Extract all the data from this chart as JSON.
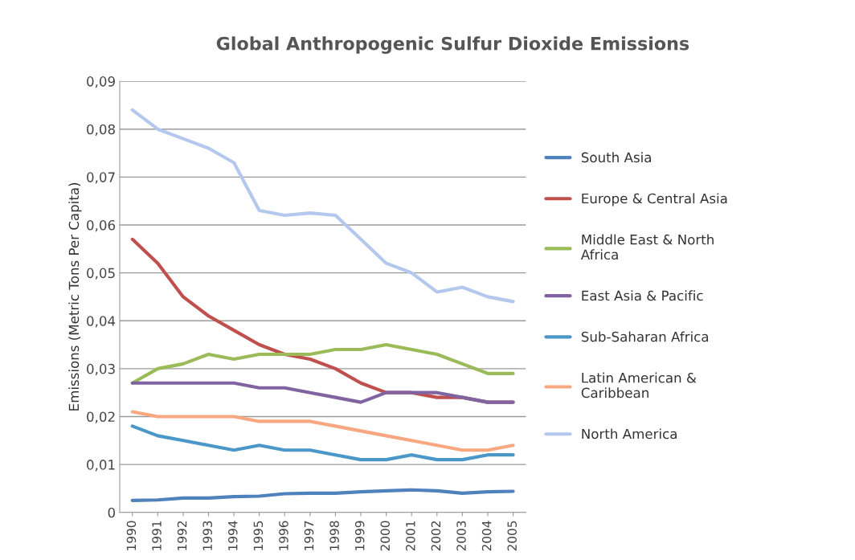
{
  "chart_data": {
    "type": "line",
    "title": "Global Anthropogenic Sulfur Dioxide Emissions",
    "ylabel": "Emissions (Metric Tons Per Capita)",
    "categories": [
      "1990",
      "1991",
      "1992",
      "1993",
      "1994",
      "1995",
      "1996",
      "1997",
      "1998",
      "1999",
      "2000",
      "2001",
      "2002",
      "2003",
      "2004",
      "2005"
    ],
    "series": [
      {
        "name": "South Asia",
        "color": "#4f81bd",
        "values": [
          0.0025,
          0.0026,
          0.003,
          0.003,
          0.0033,
          0.0034,
          0.0039,
          0.004,
          0.004,
          0.0043,
          0.0045,
          0.0047,
          0.0045,
          0.004,
          0.0043,
          0.0044
        ]
      },
      {
        "name": "Europe & Central Asia",
        "color": "#c0504d",
        "values": [
          0.057,
          0.052,
          0.045,
          0.041,
          0.038,
          0.035,
          0.033,
          0.032,
          0.03,
          0.027,
          0.025,
          0.025,
          0.024,
          0.024,
          0.023,
          0.023
        ]
      },
      {
        "name": "Middle East & North Africa",
        "color": "#9bbb59",
        "values": [
          0.027,
          0.03,
          0.031,
          0.033,
          0.032,
          0.033,
          0.033,
          0.033,
          0.034,
          0.034,
          0.035,
          0.034,
          0.033,
          0.031,
          0.029,
          0.029
        ]
      },
      {
        "name": "East Asia & Pacific",
        "color": "#8064a2",
        "values": [
          0.027,
          0.027,
          0.027,
          0.027,
          0.027,
          0.026,
          0.026,
          0.025,
          0.024,
          0.023,
          0.025,
          0.025,
          0.025,
          0.024,
          0.023,
          0.023
        ]
      },
      {
        "name": "Sub-Saharan Africa",
        "color": "#4b98c8",
        "values": [
          0.018,
          0.016,
          0.015,
          0.014,
          0.013,
          0.014,
          0.013,
          0.013,
          0.012,
          0.011,
          0.011,
          0.012,
          0.011,
          0.011,
          0.012,
          0.012
        ]
      },
      {
        "name": "Latin American & Caribbean",
        "color": "#f7a880",
        "values": [
          0.021,
          0.02,
          0.02,
          0.02,
          0.02,
          0.019,
          0.019,
          0.019,
          0.018,
          0.017,
          0.016,
          0.015,
          0.014,
          0.013,
          0.013,
          0.014
        ]
      },
      {
        "name": "North America",
        "color": "#b4c8ee",
        "values": [
          0.084,
          0.08,
          0.078,
          0.076,
          0.073,
          0.063,
          0.062,
          0.0625,
          0.062,
          0.057,
          0.052,
          0.05,
          0.046,
          0.047,
          0.045,
          0.044
        ]
      }
    ],
    "ylim": [
      0,
      0.09
    ],
    "yticks": [
      0,
      {
        "value": 0.01,
        "label": "0,01"
      },
      {
        "value": 0.02,
        "label": "0,02"
      },
      {
        "value": 0.03,
        "label": "0,03"
      },
      {
        "value": 0.04,
        "label": "0,04"
      },
      {
        "value": 0.05,
        "label": "0,05"
      },
      {
        "value": 0.06,
        "label": "0,06"
      },
      {
        "value": 0.07,
        "label": "0,07"
      },
      {
        "value": 0.08,
        "label": "0,08"
      },
      {
        "value": 0.09,
        "label": "0,09"
      }
    ],
    "grid": "y",
    "legend": "right",
    "marker": "none",
    "line_style": "solid"
  }
}
